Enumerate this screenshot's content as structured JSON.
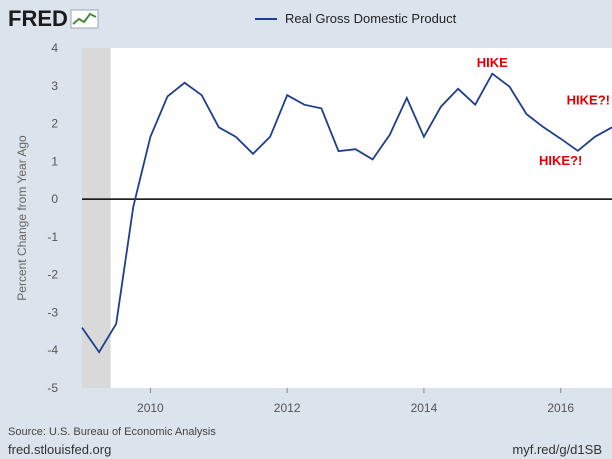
{
  "header": {
    "logo_text": "FRED",
    "logo_icon": "fred-chart-icon"
  },
  "legend": {
    "label": "Real Gross Domestic Product",
    "color": "#1e3f8c"
  },
  "source_text": "Source: U.S. Bureau of Economic Analysis",
  "footer": {
    "left": "fred.stlouisfed.org",
    "right": "myf.red/g/d1SB"
  },
  "colors": {
    "line": "#1e3f8c",
    "recession": "#d9d9d9",
    "plot_bg": "#ffffff",
    "annotation": "#e00000"
  },
  "chart_data": {
    "type": "line",
    "title": "",
    "xlabel": "",
    "ylabel": "Percent Change from Year Ago",
    "xlim": [
      2009.0,
      2016.75
    ],
    "ylim": [
      -5,
      4
    ],
    "yticks": [
      4,
      3,
      2,
      1,
      0,
      -1,
      -2,
      -3,
      -4,
      -5
    ],
    "xticks": [
      2010,
      2012,
      2014,
      2016
    ],
    "grid": false,
    "legend_position": "top",
    "recession_shading": [
      [
        2009.0,
        2009.42
      ]
    ],
    "series": [
      {
        "name": "Real Gross Domestic Product",
        "x": [
          2009.0,
          2009.25,
          2009.5,
          2009.75,
          2010.0,
          2010.25,
          2010.5,
          2010.75,
          2011.0,
          2011.25,
          2011.5,
          2011.75,
          2012.0,
          2012.25,
          2012.5,
          2012.75,
          2013.0,
          2013.25,
          2013.5,
          2013.75,
          2014.0,
          2014.25,
          2014.5,
          2014.75,
          2015.0,
          2015.25,
          2015.5,
          2015.75,
          2016.0,
          2016.25,
          2016.5,
          2016.75
        ],
        "y": [
          -3.4,
          -4.05,
          -3.3,
          -0.2,
          1.65,
          2.72,
          3.08,
          2.75,
          1.9,
          1.65,
          1.2,
          1.65,
          2.75,
          2.5,
          2.4,
          1.27,
          1.32,
          1.05,
          1.7,
          2.68,
          1.65,
          2.45,
          2.92,
          2.5,
          3.32,
          2.98,
          2.25,
          1.9,
          1.6,
          1.28,
          1.65,
          1.9
        ]
      }
    ],
    "annotations": [
      {
        "text": "HIKE",
        "x": 2015.0,
        "y": 3.5
      },
      {
        "text": "HIKE?!",
        "x": 2016.0,
        "y": 0.9
      },
      {
        "text": "HIKE?!",
        "x": 2016.75,
        "y": 2.5
      }
    ]
  }
}
